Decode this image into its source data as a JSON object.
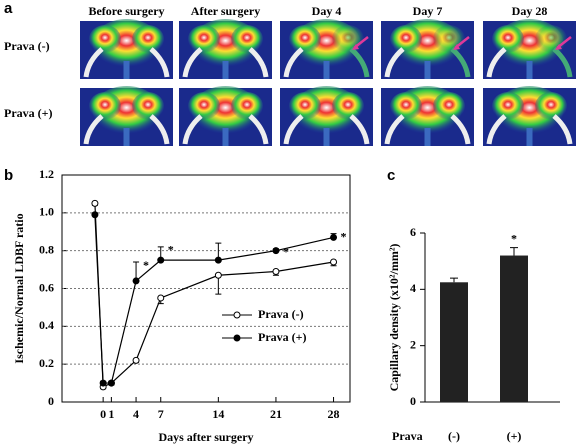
{
  "panel_a": {
    "label": "a",
    "columns": [
      "Before surgery",
      "After surgery",
      "Day 4",
      "Day 7",
      "Day 28"
    ],
    "rows": [
      "Prava (-)",
      "Prava (+)"
    ]
  },
  "chart_data": [
    {
      "type": "line",
      "panel_label": "b",
      "xlabel": "Days after surgery",
      "ylabel": "Ischemic/Normal LDBF ratio",
      "x": [
        -1,
        0,
        1,
        4,
        7,
        14,
        21,
        28
      ],
      "series": [
        {
          "name": "Prava (-)",
          "color": "#000",
          "marker": "open",
          "values": [
            1.05,
            0.08,
            0.1,
            0.22,
            0.55,
            0.67,
            0.69,
            0.74
          ],
          "errors": [
            0.01,
            0.01,
            0.01,
            0.01,
            0.03,
            0.1,
            0.02,
            0.02
          ]
        },
        {
          "name": "Prava (+)",
          "color": "#000",
          "marker": "filled",
          "values": [
            0.99,
            0.1,
            0.1,
            0.64,
            0.75,
            0.75,
            0.8,
            0.87
          ],
          "errors": [
            0.01,
            0.01,
            0.01,
            0.1,
            0.07,
            0.09,
            0.01,
            0.02
          ]
        }
      ],
      "annotation": "*",
      "annotated_points": [
        3,
        4,
        6,
        7
      ],
      "xlim": [
        -5,
        30
      ],
      "xticks": [
        0,
        1,
        4,
        7,
        14,
        21,
        28
      ],
      "ylim": [
        0,
        1.2
      ],
      "yticks": [
        0,
        0.2,
        0.4,
        0.6,
        0.8,
        {
          "value": 1,
          "label": "1.0"
        },
        1.2
      ],
      "grid": true,
      "legend": "lower-right"
    },
    {
      "type": "bar",
      "panel_label": "c",
      "ylabel": "Capillary density (x10²/mm²)",
      "xlabel": "Prava",
      "categories": [
        "(-)",
        "(+)"
      ],
      "values": [
        4.25,
        5.2
      ],
      "errors": [
        0.15,
        0.28
      ],
      "color": "#222",
      "annotation": "*",
      "annotated_points": [
        1
      ],
      "ylim": [
        0,
        6
      ],
      "yticks": [
        0,
        2,
        4,
        6
      ]
    }
  ]
}
